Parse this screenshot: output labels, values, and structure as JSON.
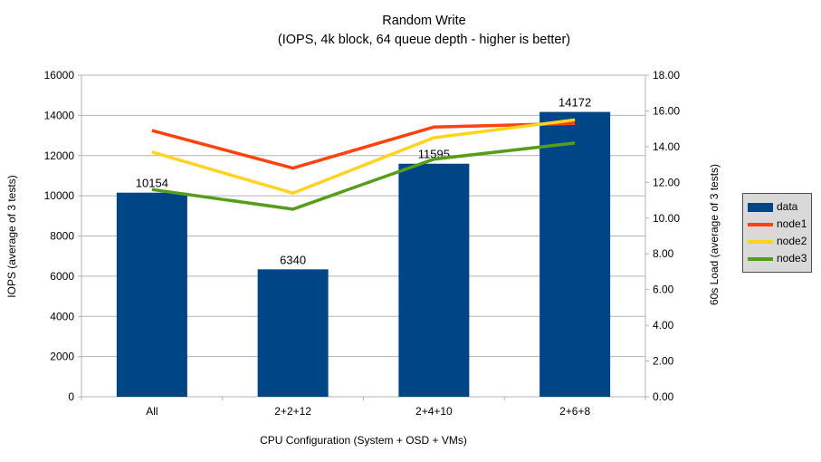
{
  "title": "Random Write",
  "subtitle": "(IOPS, 4k block, 64 queue depth - higher is better)",
  "chart_data": {
    "type": "bar+line",
    "categories": [
      "All",
      "2+2+12",
      "2+4+10",
      "2+6+8"
    ],
    "bar_series": {
      "name": "data",
      "axis": "left",
      "values": [
        10154,
        6340,
        11595,
        14172
      ],
      "data_labels": [
        "10154",
        "6340",
        "11595",
        "14172"
      ]
    },
    "line_series": [
      {
        "name": "node1",
        "axis": "right",
        "values": [
          14.9,
          12.8,
          15.1,
          15.3
        ]
      },
      {
        "name": "node2",
        "axis": "right",
        "values": [
          13.7,
          11.4,
          14.5,
          15.5
        ]
      },
      {
        "name": "node3",
        "axis": "right",
        "values": [
          11.6,
          10.5,
          13.3,
          14.2
        ]
      }
    ],
    "xlabel": "CPU Configuration (System + OSD + VMs)",
    "left_axis": {
      "label": "IOPS (average of 3 tests)",
      "min": 0,
      "max": 16000,
      "step": 2000,
      "tick_labels": [
        "0",
        "2000",
        "4000",
        "6000",
        "8000",
        "10000",
        "12000",
        "14000",
        "16000"
      ]
    },
    "right_axis": {
      "label": "60s Load (average of 3 tests)",
      "min": 0,
      "max": 18,
      "step": 2,
      "tick_labels": [
        "0.00",
        "2.00",
        "4.00",
        "6.00",
        "8.00",
        "10.00",
        "12.00",
        "14.00",
        "16.00",
        "18.00"
      ]
    },
    "legend": {
      "position": "right",
      "entries": [
        {
          "label": "data",
          "swatch": "rect",
          "color": "#004586"
        },
        {
          "label": "node1",
          "swatch": "line",
          "color": "#ff420e"
        },
        {
          "label": "node2",
          "swatch": "line",
          "color": "#ffd320"
        },
        {
          "label": "node3",
          "swatch": "line",
          "color": "#579d1c"
        }
      ]
    },
    "grid": true,
    "colors": {
      "bar": "#004586",
      "node1": "#ff420e",
      "node2": "#ffd320",
      "node3": "#579d1c",
      "gridline": "#b3b3b3",
      "axis_line": "#b3b3b3",
      "legend_bg": "#d9d9d9",
      "legend_border": "#4d4d4d",
      "text": "#000000"
    }
  }
}
